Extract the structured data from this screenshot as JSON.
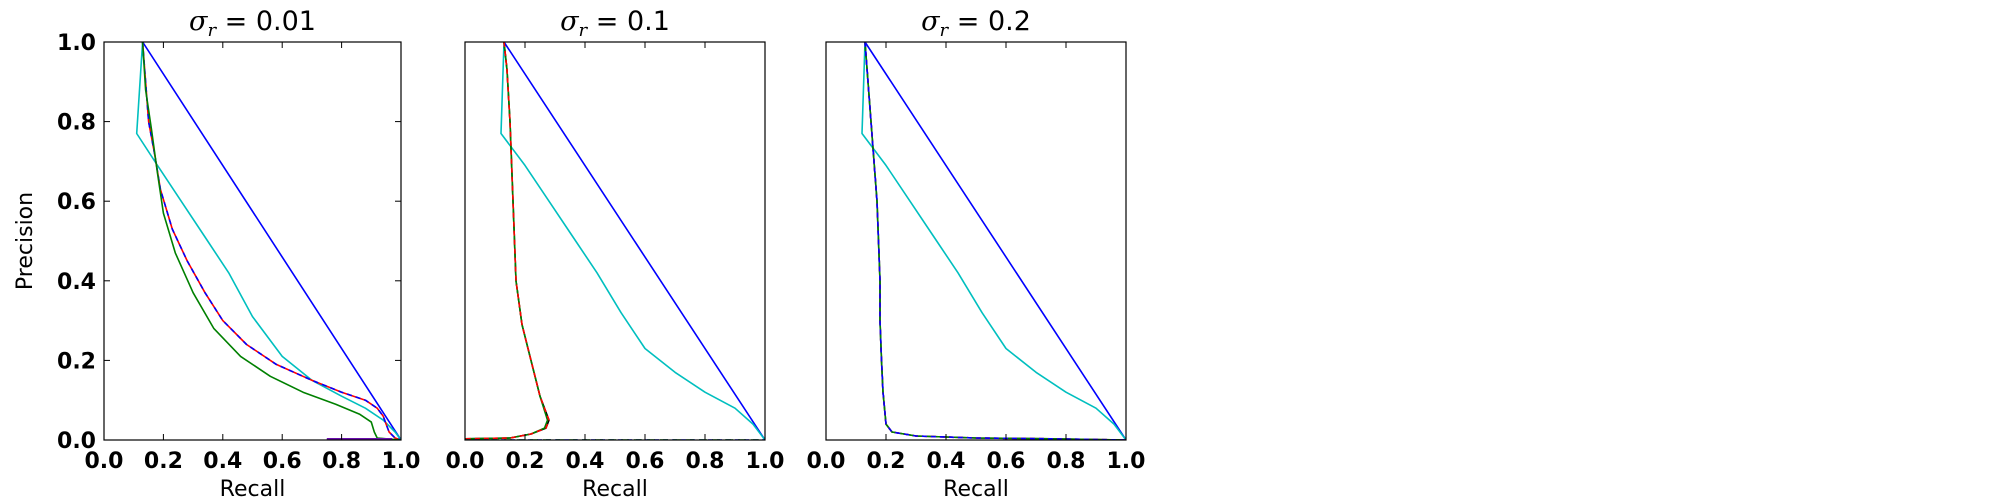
{
  "chart_data": [
    {
      "type": "line",
      "title_symbol": "σ",
      "title_subscript": "r",
      "title_rest": " = 0.01",
      "xlabel": "Recall",
      "ylabel": "Precision",
      "xlim": [
        0.0,
        1.0
      ],
      "ylim": [
        0.0,
        1.0
      ],
      "xticks": [
        "0.0",
        "0.2",
        "0.4",
        "0.6",
        "0.8",
        "1.0"
      ],
      "yticks": [
        "0.0",
        "0.2",
        "0.4",
        "0.6",
        "0.8",
        "1.0"
      ],
      "grid": false,
      "series": [
        {
          "color": "#0000ff",
          "dash": "",
          "points": [
            [
              0.13,
              1.0
            ],
            [
              1.0,
              0.0
            ]
          ]
        },
        {
          "color": "#00bfbf",
          "dash": "",
          "points": [
            [
              0.13,
              1.0
            ],
            [
              0.11,
              0.77
            ],
            [
              0.18,
              0.69
            ],
            [
              0.26,
              0.6
            ],
            [
              0.34,
              0.51
            ],
            [
              0.42,
              0.42
            ],
            [
              0.5,
              0.31
            ],
            [
              0.6,
              0.21
            ],
            [
              0.7,
              0.15
            ],
            [
              0.8,
              0.11
            ],
            [
              0.88,
              0.08
            ],
            [
              0.94,
              0.05
            ],
            [
              0.98,
              0.02
            ],
            [
              1.0,
              0.0
            ]
          ]
        },
        {
          "color": "#ff0000",
          "dash": "",
          "points": [
            [
              0.13,
              1.0
            ],
            [
              0.14,
              0.9
            ],
            [
              0.15,
              0.8
            ],
            [
              0.17,
              0.72
            ],
            [
              0.19,
              0.63
            ],
            [
              0.23,
              0.53
            ],
            [
              0.28,
              0.45
            ],
            [
              0.34,
              0.37
            ],
            [
              0.4,
              0.3
            ],
            [
              0.48,
              0.24
            ],
            [
              0.58,
              0.19
            ],
            [
              0.7,
              0.15
            ],
            [
              0.8,
              0.12
            ],
            [
              0.88,
              0.1
            ],
            [
              0.92,
              0.08
            ],
            [
              0.94,
              0.06
            ],
            [
              0.95,
              0.04
            ],
            [
              0.96,
              0.02
            ],
            [
              0.98,
              0.005
            ],
            [
              1.0,
              0.0
            ]
          ]
        },
        {
          "color": "#0000ff",
          "dash": "5,4",
          "points": [
            [
              0.13,
              1.0
            ],
            [
              0.14,
              0.9
            ],
            [
              0.15,
              0.8
            ],
            [
              0.17,
              0.72
            ],
            [
              0.19,
              0.63
            ],
            [
              0.23,
              0.53
            ],
            [
              0.28,
              0.45
            ],
            [
              0.34,
              0.37
            ],
            [
              0.4,
              0.3
            ],
            [
              0.48,
              0.24
            ],
            [
              0.58,
              0.19
            ],
            [
              0.7,
              0.15
            ],
            [
              0.8,
              0.12
            ],
            [
              0.88,
              0.1
            ],
            [
              0.92,
              0.08
            ],
            [
              0.94,
              0.06
            ],
            [
              0.95,
              0.04
            ],
            [
              0.96,
              0.02
            ],
            [
              0.98,
              0.005
            ],
            [
              1.0,
              0.0
            ]
          ]
        },
        {
          "color": "#008000",
          "dash": "",
          "points": [
            [
              0.13,
              1.0
            ],
            [
              0.14,
              0.88
            ],
            [
              0.16,
              0.78
            ],
            [
              0.18,
              0.67
            ],
            [
              0.2,
              0.57
            ],
            [
              0.24,
              0.47
            ],
            [
              0.3,
              0.37
            ],
            [
              0.37,
              0.28
            ],
            [
              0.46,
              0.21
            ],
            [
              0.56,
              0.16
            ],
            [
              0.67,
              0.12
            ],
            [
              0.78,
              0.09
            ],
            [
              0.86,
              0.065
            ],
            [
              0.9,
              0.045
            ],
            [
              0.91,
              0.02
            ],
            [
              0.92,
              0.005
            ],
            [
              0.95,
              0.003
            ],
            [
              1.0,
              0.0
            ]
          ]
        },
        {
          "color": "#000000",
          "dash": "",
          "points": [
            [
              0.75,
              0.0
            ],
            [
              0.97,
              0.0
            ]
          ]
        },
        {
          "color": "#6a0dad",
          "dash": "",
          "points": [
            [
              0.75,
              0.003
            ],
            [
              0.97,
              0.003
            ]
          ]
        }
      ]
    },
    {
      "type": "line",
      "title_symbol": "σ",
      "title_subscript": "r",
      "title_rest": " = 0.1",
      "xlabel": "Recall",
      "ylabel": "",
      "xlim": [
        0.0,
        1.0
      ],
      "ylim": [
        0.0,
        1.0
      ],
      "xticks": [
        "0.0",
        "0.2",
        "0.4",
        "0.6",
        "0.8",
        "1.0"
      ],
      "yticks": [],
      "grid": false,
      "series": [
        {
          "color": "#0000ff",
          "dash": "",
          "points": [
            [
              0.13,
              1.0
            ],
            [
              1.0,
              0.0
            ]
          ]
        },
        {
          "color": "#00bfbf",
          "dash": "",
          "points": [
            [
              0.13,
              1.0
            ],
            [
              0.12,
              0.77
            ],
            [
              0.2,
              0.69
            ],
            [
              0.28,
              0.6
            ],
            [
              0.36,
              0.51
            ],
            [
              0.44,
              0.42
            ],
            [
              0.52,
              0.32
            ],
            [
              0.6,
              0.23
            ],
            [
              0.7,
              0.17
            ],
            [
              0.8,
              0.12
            ],
            [
              0.9,
              0.08
            ],
            [
              0.96,
              0.04
            ],
            [
              1.0,
              0.0
            ]
          ]
        },
        {
          "color": "#000000",
          "dash": "",
          "points": [
            [
              0.13,
              1.0
            ],
            [
              0.14,
              0.93
            ],
            [
              0.15,
              0.8
            ],
            [
              0.16,
              0.6
            ],
            [
              0.17,
              0.4
            ],
            [
              0.19,
              0.29
            ],
            [
              0.22,
              0.2
            ],
            [
              0.25,
              0.11
            ],
            [
              0.28,
              0.05
            ],
            [
              0.27,
              0.03
            ],
            [
              0.22,
              0.015
            ],
            [
              0.15,
              0.005
            ],
            [
              0.0,
              0.003
            ]
          ]
        },
        {
          "color": "#008000",
          "dash": "",
          "points": [
            [
              0.13,
              1.0
            ],
            [
              0.14,
              0.93
            ],
            [
              0.15,
              0.8
            ],
            [
              0.16,
              0.6
            ],
            [
              0.17,
              0.4
            ],
            [
              0.19,
              0.29
            ],
            [
              0.22,
              0.2
            ],
            [
              0.25,
              0.11
            ],
            [
              0.275,
              0.05
            ],
            [
              0.265,
              0.03
            ],
            [
              0.22,
              0.015
            ],
            [
              0.15,
              0.005
            ],
            [
              0.0,
              0.003
            ]
          ]
        },
        {
          "color": "#ff0000",
          "dash": "5,4",
          "points": [
            [
              0.13,
              1.0
            ],
            [
              0.14,
              0.93
            ],
            [
              0.15,
              0.8
            ],
            [
              0.16,
              0.6
            ],
            [
              0.17,
              0.4
            ],
            [
              0.19,
              0.29
            ],
            [
              0.22,
              0.2
            ],
            [
              0.25,
              0.11
            ],
            [
              0.28,
              0.05
            ],
            [
              0.27,
              0.03
            ],
            [
              0.22,
              0.015
            ],
            [
              0.15,
              0.005
            ],
            [
              0.0,
              0.003
            ]
          ]
        },
        {
          "color": "#0000ff",
          "dash": "5,4",
          "points": [
            [
              0.0,
              0.0
            ],
            [
              1.0,
              0.0
            ]
          ]
        },
        {
          "color": "#008000",
          "dash": "8,5",
          "points": [
            [
              0.0,
              0.0
            ],
            [
              1.0,
              0.0
            ]
          ]
        }
      ]
    },
    {
      "type": "line",
      "title_symbol": "σ",
      "title_subscript": "r",
      "title_rest": " = 0.2",
      "xlabel": "Recall",
      "ylabel": "",
      "xlim": [
        0.0,
        1.0
      ],
      "ylim": [
        0.0,
        1.0
      ],
      "xticks": [
        "0.0",
        "0.2",
        "0.4",
        "0.6",
        "0.8",
        "1.0"
      ],
      "yticks": [],
      "grid": false,
      "series": [
        {
          "color": "#0000ff",
          "dash": "",
          "points": [
            [
              0.13,
              1.0
            ],
            [
              1.0,
              0.0
            ]
          ]
        },
        {
          "color": "#00bfbf",
          "dash": "",
          "points": [
            [
              0.13,
              1.0
            ],
            [
              0.12,
              0.77
            ],
            [
              0.2,
              0.69
            ],
            [
              0.28,
              0.6
            ],
            [
              0.36,
              0.51
            ],
            [
              0.44,
              0.42
            ],
            [
              0.52,
              0.32
            ],
            [
              0.6,
              0.23
            ],
            [
              0.7,
              0.17
            ],
            [
              0.8,
              0.12
            ],
            [
              0.9,
              0.08
            ],
            [
              0.96,
              0.04
            ],
            [
              1.0,
              0.0
            ]
          ]
        },
        {
          "color": "#000000",
          "dash": "",
          "points": [
            [
              0.13,
              1.0
            ],
            [
              0.14,
              0.9
            ],
            [
              0.15,
              0.8
            ],
            [
              0.16,
              0.7
            ],
            [
              0.17,
              0.6
            ],
            [
              0.175,
              0.5
            ],
            [
              0.18,
              0.4
            ],
            [
              0.18,
              0.3
            ],
            [
              0.185,
              0.2
            ],
            [
              0.19,
              0.12
            ],
            [
              0.2,
              0.04
            ],
            [
              0.22,
              0.02
            ],
            [
              0.3,
              0.01
            ],
            [
              0.5,
              0.005
            ],
            [
              0.75,
              0.003
            ],
            [
              1.0,
              0.0
            ]
          ]
        },
        {
          "color": "#008000",
          "dash": "",
          "points": [
            [
              0.13,
              1.0
            ],
            [
              0.14,
              0.9
            ],
            [
              0.15,
              0.8
            ],
            [
              0.16,
              0.7
            ],
            [
              0.17,
              0.6
            ],
            [
              0.175,
              0.5
            ],
            [
              0.18,
              0.4
            ],
            [
              0.18,
              0.3
            ],
            [
              0.185,
              0.2
            ],
            [
              0.19,
              0.12
            ],
            [
              0.2,
              0.04
            ],
            [
              0.22,
              0.02
            ],
            [
              0.3,
              0.01
            ],
            [
              0.5,
              0.005
            ],
            [
              0.75,
              0.003
            ],
            [
              1.0,
              0.0
            ]
          ]
        },
        {
          "color": "#ff0000",
          "dash": "5,4",
          "points": [
            [
              0.13,
              1.0
            ],
            [
              0.14,
              0.9
            ],
            [
              0.15,
              0.8
            ],
            [
              0.16,
              0.7
            ],
            [
              0.17,
              0.6
            ],
            [
              0.175,
              0.5
            ],
            [
              0.18,
              0.4
            ],
            [
              0.18,
              0.3
            ],
            [
              0.185,
              0.2
            ],
            [
              0.19,
              0.12
            ],
            [
              0.2,
              0.04
            ],
            [
              0.22,
              0.02
            ],
            [
              0.3,
              0.01
            ],
            [
              0.5,
              0.005
            ],
            [
              0.75,
              0.003
            ],
            [
              1.0,
              0.0
            ]
          ]
        },
        {
          "color": "#0000ff",
          "dash": "5,4",
          "points": [
            [
              0.13,
              1.0
            ],
            [
              0.14,
              0.9
            ],
            [
              0.15,
              0.8
            ],
            [
              0.16,
              0.7
            ],
            [
              0.17,
              0.6
            ],
            [
              0.175,
              0.5
            ],
            [
              0.18,
              0.4
            ],
            [
              0.18,
              0.3
            ],
            [
              0.185,
              0.2
            ],
            [
              0.19,
              0.12
            ],
            [
              0.2,
              0.04
            ],
            [
              0.22,
              0.02
            ],
            [
              0.3,
              0.01
            ],
            [
              0.5,
              0.005
            ],
            [
              0.75,
              0.003
            ],
            [
              1.0,
              0.0
            ]
          ]
        }
      ]
    }
  ]
}
